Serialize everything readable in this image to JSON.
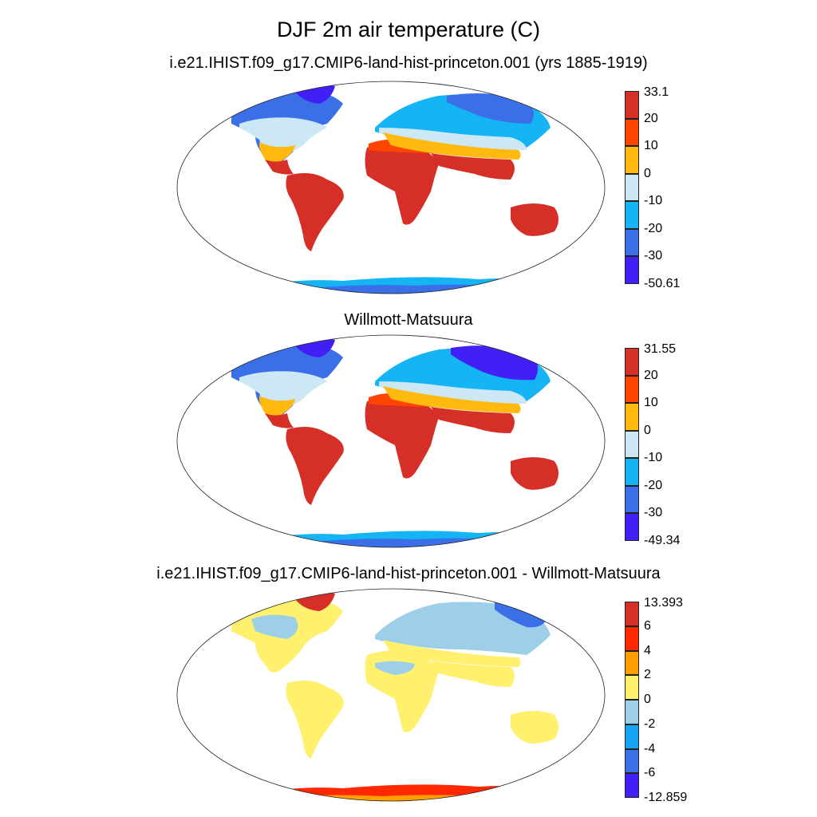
{
  "title": "DJF 2m air temperature (C)",
  "panels": [
    {
      "title": "i.e21.IHIST.f09_g17.CMIP6-land-hist-princeton.001 (yrs 1885-1919)",
      "colorbar": {
        "labels": [
          "33.1",
          "20",
          "10",
          "0",
          "-10",
          "-20",
          "-30",
          "-50.61"
        ],
        "colors": [
          "#d62f27",
          "#ff4500",
          "#ffb90f",
          "#cce8f4",
          "#14b4f5",
          "#3a6fe8",
          "#4020f5"
        ]
      }
    },
    {
      "title": "Willmott-Matsuura",
      "colorbar": {
        "labels": [
          "31.55",
          "20",
          "10",
          "0",
          "-10",
          "-20",
          "-30",
          "-49.34"
        ],
        "colors": [
          "#d62f27",
          "#ff4500",
          "#ffb90f",
          "#cce8f4",
          "#14b4f5",
          "#3a6fe8",
          "#4020f5"
        ]
      }
    },
    {
      "title": "i.e21.IHIST.f09_g17.CMIP6-land-hist-princeton.001 - Willmott-Matsuura",
      "colorbar": {
        "labels": [
          "13.393",
          "6",
          "4",
          "2",
          "0",
          "-2",
          "-4",
          "-6",
          "-12.859"
        ],
        "colors": [
          "#d62f27",
          "#ff2800",
          "#ff9e00",
          "#fff06e",
          "#9ecfe8",
          "#14a5f5",
          "#3a6fe8",
          "#4020f5"
        ]
      }
    }
  ]
}
